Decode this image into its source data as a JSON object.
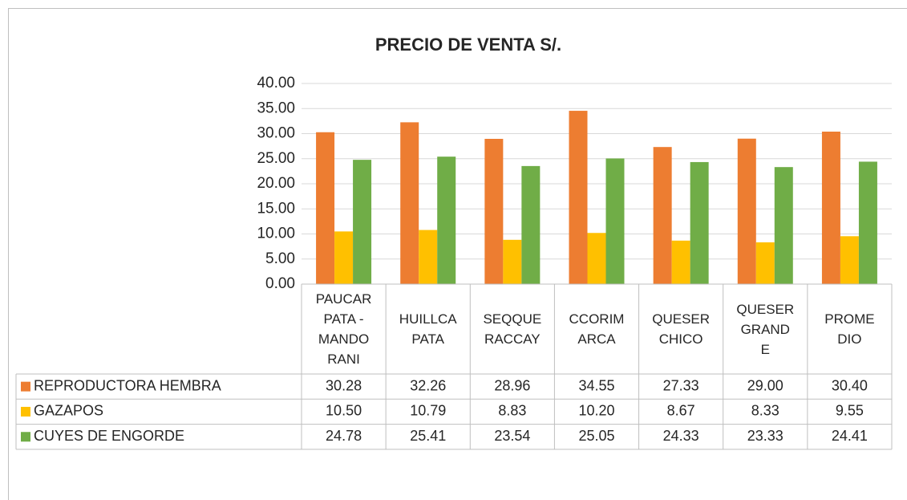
{
  "chart_data": {
    "type": "bar",
    "title": "PRECIO DE VENTA S/.",
    "categories": [
      "PAUCAR\nPATA -\nMANDO\nRANI",
      "HUILLCA\nPATA",
      "SEQQUE\nRACCAY",
      "CCORIM\nARCA",
      "QUESER\nCHICO",
      "QUESER\nGRAND\nE",
      "PROME\nDIO"
    ],
    "series": [
      {
        "name": "REPRODUCTORA HEMBRA",
        "color": "#ED7D31",
        "values": [
          30.28,
          32.26,
          28.96,
          34.55,
          27.33,
          29.0,
          30.4
        ],
        "value_labels": [
          "30.28",
          "32.26",
          "28.96",
          "34.55",
          "27.33",
          "29.00",
          "30.40"
        ]
      },
      {
        "name": "GAZAPOS",
        "color": "#FFC000",
        "values": [
          10.5,
          10.79,
          8.83,
          10.2,
          8.67,
          8.33,
          9.55
        ],
        "value_labels": [
          "10.50",
          "10.79",
          "8.83",
          "10.20",
          "8.67",
          "8.33",
          "9.55"
        ]
      },
      {
        "name": "CUYES DE ENGORDE",
        "color": "#70AD47",
        "values": [
          24.78,
          25.41,
          23.54,
          25.05,
          24.33,
          23.33,
          24.41
        ],
        "value_labels": [
          "24.78",
          "25.41",
          "23.54",
          "25.05",
          "24.33",
          "23.33",
          "24.41"
        ]
      }
    ],
    "ylim": [
      0,
      40
    ],
    "yticks": [
      {
        "value": 0,
        "label": "0.00"
      },
      {
        "value": 5,
        "label": "5.00"
      },
      {
        "value": 10,
        "label": "10.00"
      },
      {
        "value": 15,
        "label": "15.00"
      },
      {
        "value": 20,
        "label": "20.00"
      },
      {
        "value": 25,
        "label": "25.00"
      },
      {
        "value": 30,
        "label": "30.00"
      },
      {
        "value": 35,
        "label": "35.00"
      },
      {
        "value": 40,
        "label": "40.00"
      }
    ],
    "grid": true
  }
}
